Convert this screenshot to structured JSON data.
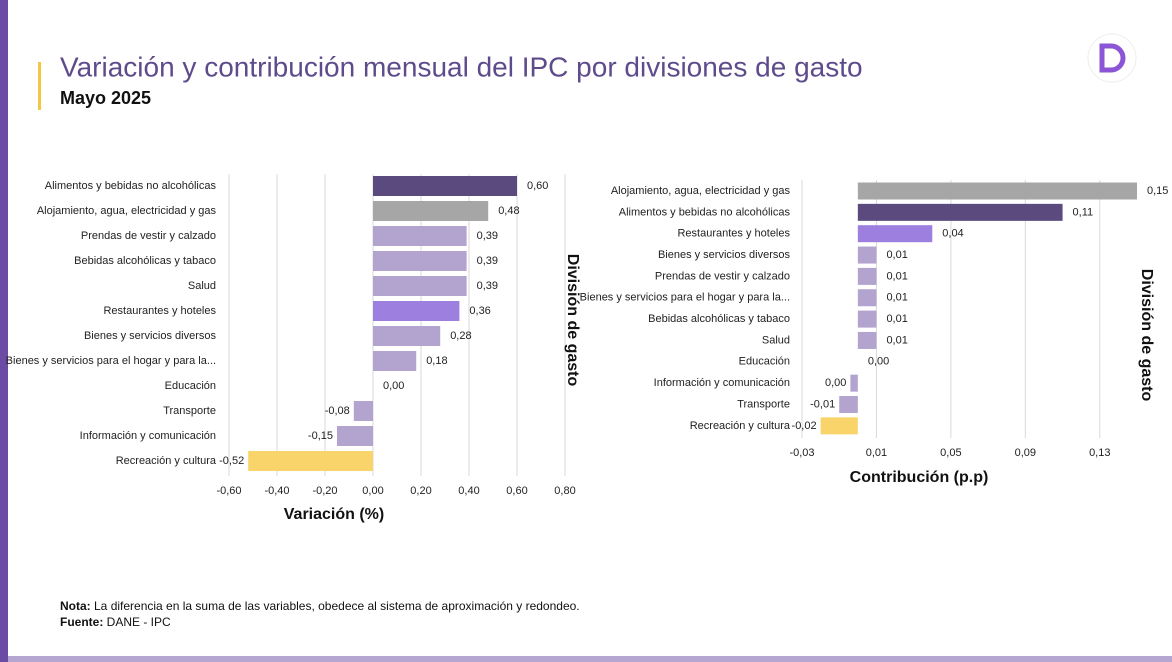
{
  "header": {
    "title": "Variación  y contribución mensual del IPC por divisiones de gasto",
    "subtitle": "Mayo 2025"
  },
  "chart_data": [
    {
      "type": "hbar",
      "x_label": "Variación (%)",
      "y_label": "División de gasto",
      "categories": [
        "Alimentos y bebidas no alcohólicas",
        "Alojamiento, agua, electricidad y gas",
        "Prendas de vestir y calzado",
        "Bebidas alcohólicas y tabaco",
        "Salud",
        "Restaurantes y hoteles",
        "Bienes y servicios diversos",
        "Bienes y servicios para el hogar y para la...",
        "Educación",
        "Transporte",
        "Información y comunicación",
        "Recreación y cultura"
      ],
      "values": [
        0.6,
        0.48,
        0.39,
        0.39,
        0.39,
        0.36,
        0.28,
        0.18,
        0,
        -0.08,
        -0.15,
        -0.52
      ],
      "value_labels": [
        "0,60",
        "0,48",
        "0,39",
        "0,39",
        "0,39",
        "0,36",
        "0,28",
        "0,18",
        "0,00",
        "-0,08",
        "-0,15",
        "-0,52"
      ],
      "colors": [
        "#5b4a7e",
        "#a6a6a6",
        "#b3a3cf",
        "#b3a3cf",
        "#b3a3cf",
        "#9c7fdf",
        "#b3a3cf",
        "#b3a3cf",
        "#b3a3cf",
        "#b3a3cf",
        "#b3a3cf",
        "#f8d46a"
      ],
      "xlim": [
        -0.6,
        0.8
      ],
      "xticks": [
        {
          "value": -0.6,
          "label": "-0,60"
        },
        {
          "value": -0.4,
          "label": "-0,40"
        },
        {
          "value": -0.2,
          "label": "-0,20"
        },
        {
          "value": 0,
          "label": "0,00"
        },
        {
          "value": 0.2,
          "label": "0,20"
        },
        {
          "value": 0.4,
          "label": "0,40"
        },
        {
          "value": 0.6,
          "label": "0,60"
        },
        {
          "value": 0.8,
          "label": "0,80"
        }
      ],
      "grid": true
    },
    {
      "type": "hbar",
      "x_label": "Contribución (p.p)",
      "y_label": "División de gasto",
      "categories": [
        "Alojamiento, agua, electricidad y gas",
        "Alimentos y bebidas no alcohólicas",
        "Restaurantes y hoteles",
        "Bienes y servicios diversos",
        "Prendas de vestir y calzado",
        "Bienes y servicios para el hogar y para la...",
        "Bebidas alcohólicas y tabaco",
        "Salud",
        "Educación",
        "Información y comunicación",
        "Transporte",
        "Recreación y cultura"
      ],
      "values": [
        0.15,
        0.11,
        0.04,
        0.01,
        0.01,
        0.01,
        0.01,
        0.01,
        0,
        -0.004,
        -0.01,
        -0.02
      ],
      "value_labels": [
        "0,15",
        "0,11",
        "0,04",
        "0,01",
        "0,01",
        "0,01",
        "0,01",
        "0,01",
        "0,00",
        "0,00",
        "-0,01",
        "-0,02"
      ],
      "colors": [
        "#a6a6a6",
        "#5b4a7e",
        "#9c7fdf",
        "#b3a3cf",
        "#b3a3cf",
        "#b3a3cf",
        "#b3a3cf",
        "#b3a3cf",
        "#b3a3cf",
        "#b3a3cf",
        "#b3a3cf",
        "#f8d46a"
      ],
      "xlim": [
        -0.03,
        0.15
      ],
      "xticks": [
        {
          "value": -0.03,
          "label": "-0,03"
        },
        {
          "value": 0.01,
          "label": "0,01"
        },
        {
          "value": 0.05,
          "label": "0,05"
        },
        {
          "value": 0.09,
          "label": "0,09"
        },
        {
          "value": 0.13,
          "label": "0,13"
        }
      ],
      "grid": true
    }
  ],
  "notes": [
    {
      "label": "Nota:",
      "text": " La diferencia en la suma de las variables, obedece al sistema de aproximación y redondeo."
    },
    {
      "label": "Fuente:",
      "text": " DANE - IPC"
    }
  ]
}
